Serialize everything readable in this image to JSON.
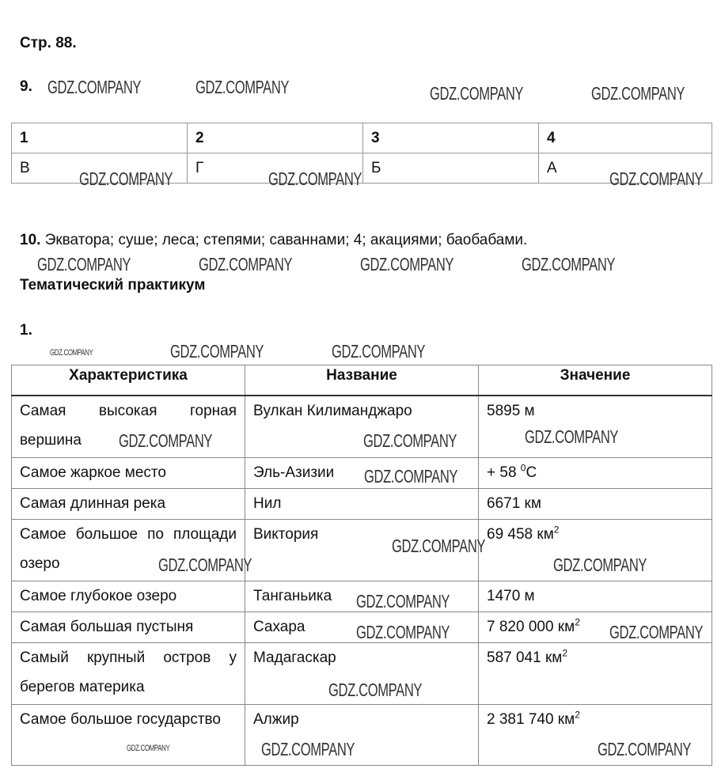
{
  "page_label": "Стр. 88.",
  "task9": {
    "number": "9.",
    "headers": [
      "1",
      "2",
      "3",
      "4"
    ],
    "answers": [
      "В",
      "Г",
      "Б",
      "А"
    ]
  },
  "task10": {
    "number": "10.",
    "text": "Экватора; суше; леса; степями; саваннами; 4; акациями; баобабами."
  },
  "section_title": "Тематический практикум",
  "task1": {
    "number": "1.",
    "headers": [
      "Характеристика",
      "Название",
      "Значение"
    ],
    "rows": [
      {
        "characteristic": "Самая высокая горная вершина",
        "name": "Вулкан Килиманджаро",
        "value": "5895 м",
        "sup": ""
      },
      {
        "characteristic": "Самое жаркое место",
        "name": "Эль-Азизии",
        "value": "+ 58 ",
        "sup": "0",
        "unit": "С"
      },
      {
        "characteristic": "Самая длинная река",
        "name": "Нил",
        "value": "6671 км",
        "sup": ""
      },
      {
        "characteristic": "Самое большое по площади озеро",
        "name": "Виктория",
        "value": "69 458 км",
        "sup": "2"
      },
      {
        "characteristic": "Самое глубокое озеро",
        "name": "Танганьика",
        "value": "1470 м",
        "sup": ""
      },
      {
        "characteristic": "Самая большая пустыня",
        "name": "Сахара",
        "value": "7 820 000 км",
        "sup": "2"
      },
      {
        "characteristic": "Самый крупный остров у берегов материка",
        "name": "Мадагаскар",
        "value": "587 041 км",
        "sup": "2"
      },
      {
        "characteristic": "Самое большое государство",
        "name": "Алжир",
        "value": "2 381 740 км",
        "sup": "2"
      }
    ]
  },
  "watermark": "GDZ.COMPANY"
}
